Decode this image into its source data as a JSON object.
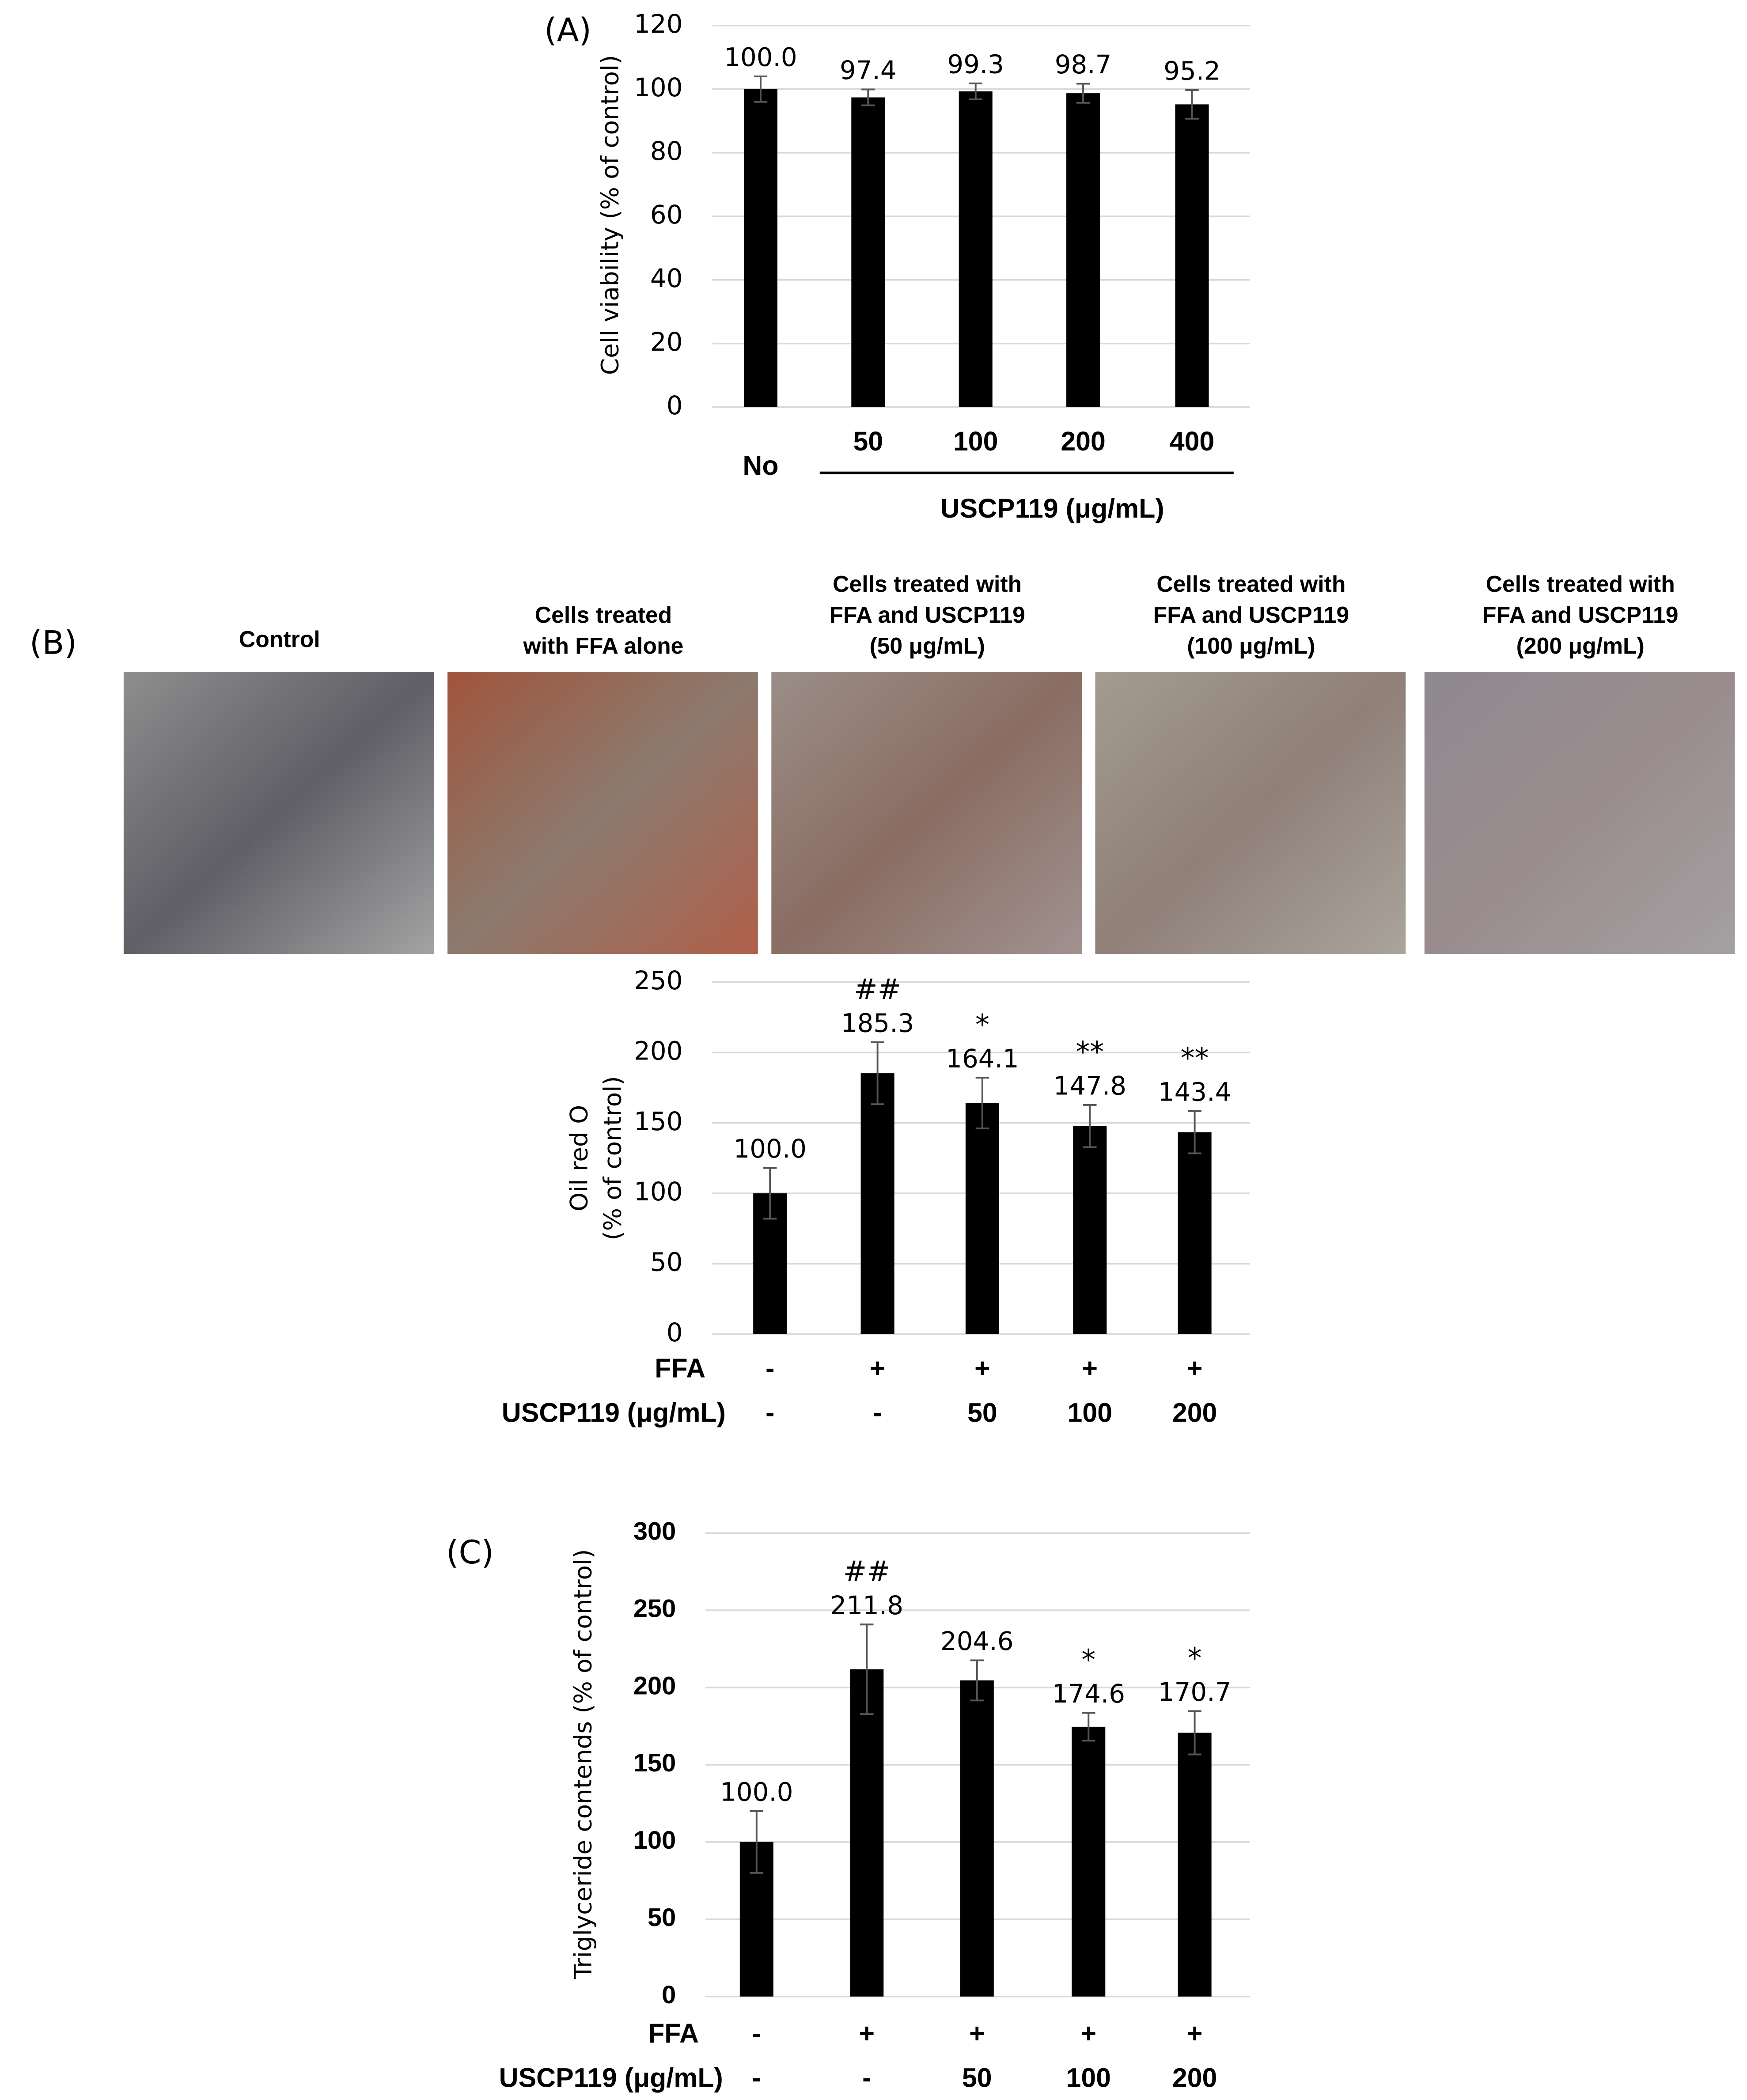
{
  "chart_data": [
    {
      "type": "bar",
      "panel": "(A)",
      "ylabel": [
        "Cell viability (% of control)"
      ],
      "categories": [
        "No",
        "50",
        "100",
        "200",
        "400"
      ],
      "group_label": "USCP119 (μg/mL)",
      "values": [
        100.0,
        97.4,
        99.3,
        98.7,
        95.2
      ],
      "value_labels": [
        "100.0",
        "97.4",
        "99.3",
        "98.7",
        "95.2"
      ],
      "errors": [
        4,
        2.5,
        2.5,
        3,
        4.5
      ],
      "color": "#000000",
      "ylim": [
        0,
        120
      ],
      "yticks": [
        0,
        20,
        40,
        60,
        80,
        100,
        120
      ],
      "grid": true
    },
    {
      "type": "bar",
      "panel": "(B)",
      "images": [
        {
          "title": [
            "Control"
          ]
        },
        {
          "title": [
            "Cells treated",
            "with FFA alone"
          ]
        },
        {
          "title": [
            "Cells treated with",
            "FFA and USCP119",
            "(50 μg/mL)"
          ]
        },
        {
          "title": [
            "Cells treated with",
            "FFA and USCP119",
            "(100 μg/mL)"
          ]
        },
        {
          "title": [
            "Cells treated with",
            "FFA and USCP119",
            "(200 μg/mL)"
          ]
        }
      ],
      "ylabel": [
        "Oil red O",
        "(% of control)"
      ],
      "rows": [
        {
          "label": "FFA",
          "values": [
            "-",
            "+",
            "+",
            "+",
            "+"
          ]
        },
        {
          "label": "USCP119 (μg/mL)",
          "values": [
            "-",
            "-",
            "50",
            "100",
            "200"
          ]
        }
      ],
      "values": [
        100.0,
        185.3,
        164.1,
        147.8,
        143.4
      ],
      "value_labels": [
        "100.0",
        "185.3",
        "164.1",
        "147.8",
        "143.4"
      ],
      "errors": [
        18,
        22,
        18,
        15,
        15
      ],
      "significance": [
        null,
        "##",
        "*",
        "**",
        "**"
      ],
      "color": "#000000",
      "ylim": [
        0,
        250
      ],
      "yticks": [
        0,
        50,
        100,
        150,
        200,
        250
      ],
      "grid": true
    },
    {
      "type": "bar",
      "panel": "(C)",
      "ylabel": [
        "Triglyceride contends (% of control)"
      ],
      "rows": [
        {
          "label": "FFA",
          "values": [
            "-",
            "+",
            "+",
            "+",
            "+"
          ]
        },
        {
          "label": "USCP119 (μg/mL)",
          "values": [
            "-",
            "-",
            "50",
            "100",
            "200"
          ]
        }
      ],
      "values": [
        100.0,
        211.8,
        204.6,
        174.6,
        170.7
      ],
      "value_labels": [
        "100.0",
        "211.8",
        "204.6",
        "174.6",
        "170.7"
      ],
      "errors": [
        20,
        29,
        13,
        9,
        14
      ],
      "significance": [
        null,
        "##",
        null,
        "*",
        "*"
      ],
      "color": "#000000",
      "ylim": [
        0,
        300
      ],
      "yticks": [
        0,
        50,
        100,
        150,
        200,
        250,
        300
      ],
      "grid": true
    }
  ]
}
